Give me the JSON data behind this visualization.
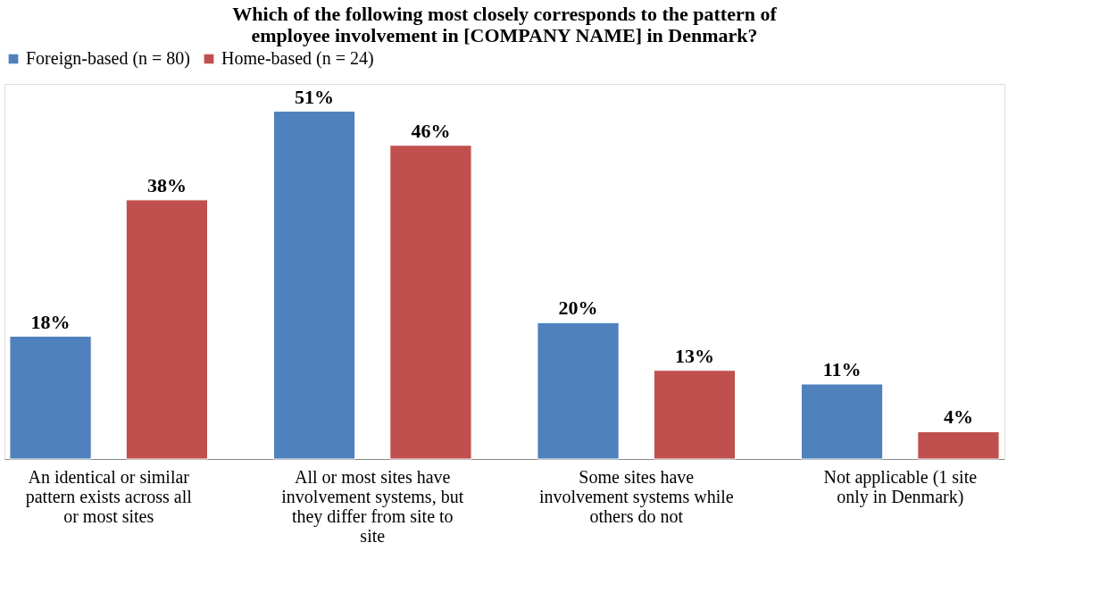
{
  "chart_data": {
    "type": "bar",
    "title": "Which of the following most closely corresponds to the pattern of employee involvement in [COMPANY NAME] in Denmark?",
    "categories": [
      "An identical or similar pattern exists across all or most sites",
      "All or most sites have involvement systems, but they differ from site to site",
      "Some sites have involvement systems while others do not",
      "Not applicable (1 site only in Denmark)"
    ],
    "series": [
      {
        "name": "Foreign-based (n = 80)",
        "color": "#4f81bd",
        "values": [
          18,
          51,
          20,
          11
        ],
        "value_labels": [
          "18%",
          "51%",
          "20%",
          "11%"
        ]
      },
      {
        "name": "Home-based (n = 24)",
        "color": "#c0504d",
        "values": [
          38,
          46,
          13,
          4
        ],
        "value_labels": [
          "38%",
          "46%",
          "13%",
          "4%"
        ]
      }
    ],
    "legend": "top",
    "grid": false,
    "tick_labels": "x"
  }
}
